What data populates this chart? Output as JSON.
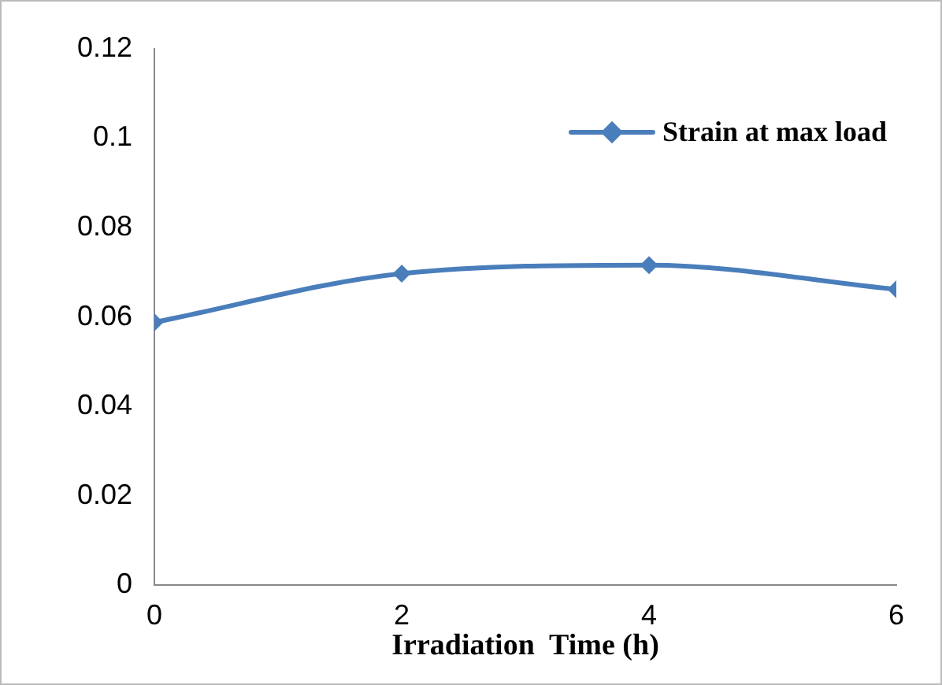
{
  "chart_data": {
    "type": "line",
    "xlabel": "Irradiation  Time (h)",
    "x": [
      0,
      2,
      4,
      6
    ],
    "series": [
      {
        "name": "Strain at max load",
        "color": "#4a7ebb",
        "values": [
          0.0588,
          0.0697,
          0.0716,
          0.0662
        ]
      }
    ],
    "xlim": [
      0,
      6
    ],
    "xticks": [
      0,
      2,
      4,
      6
    ],
    "ylim": [
      0,
      0.12
    ],
    "yticks": [
      0,
      0.02,
      0.04,
      0.06,
      0.08,
      0.1,
      0.12
    ],
    "grid": false,
    "legend": "top right",
    "marker": "diamond",
    "line_style": "solid"
  }
}
